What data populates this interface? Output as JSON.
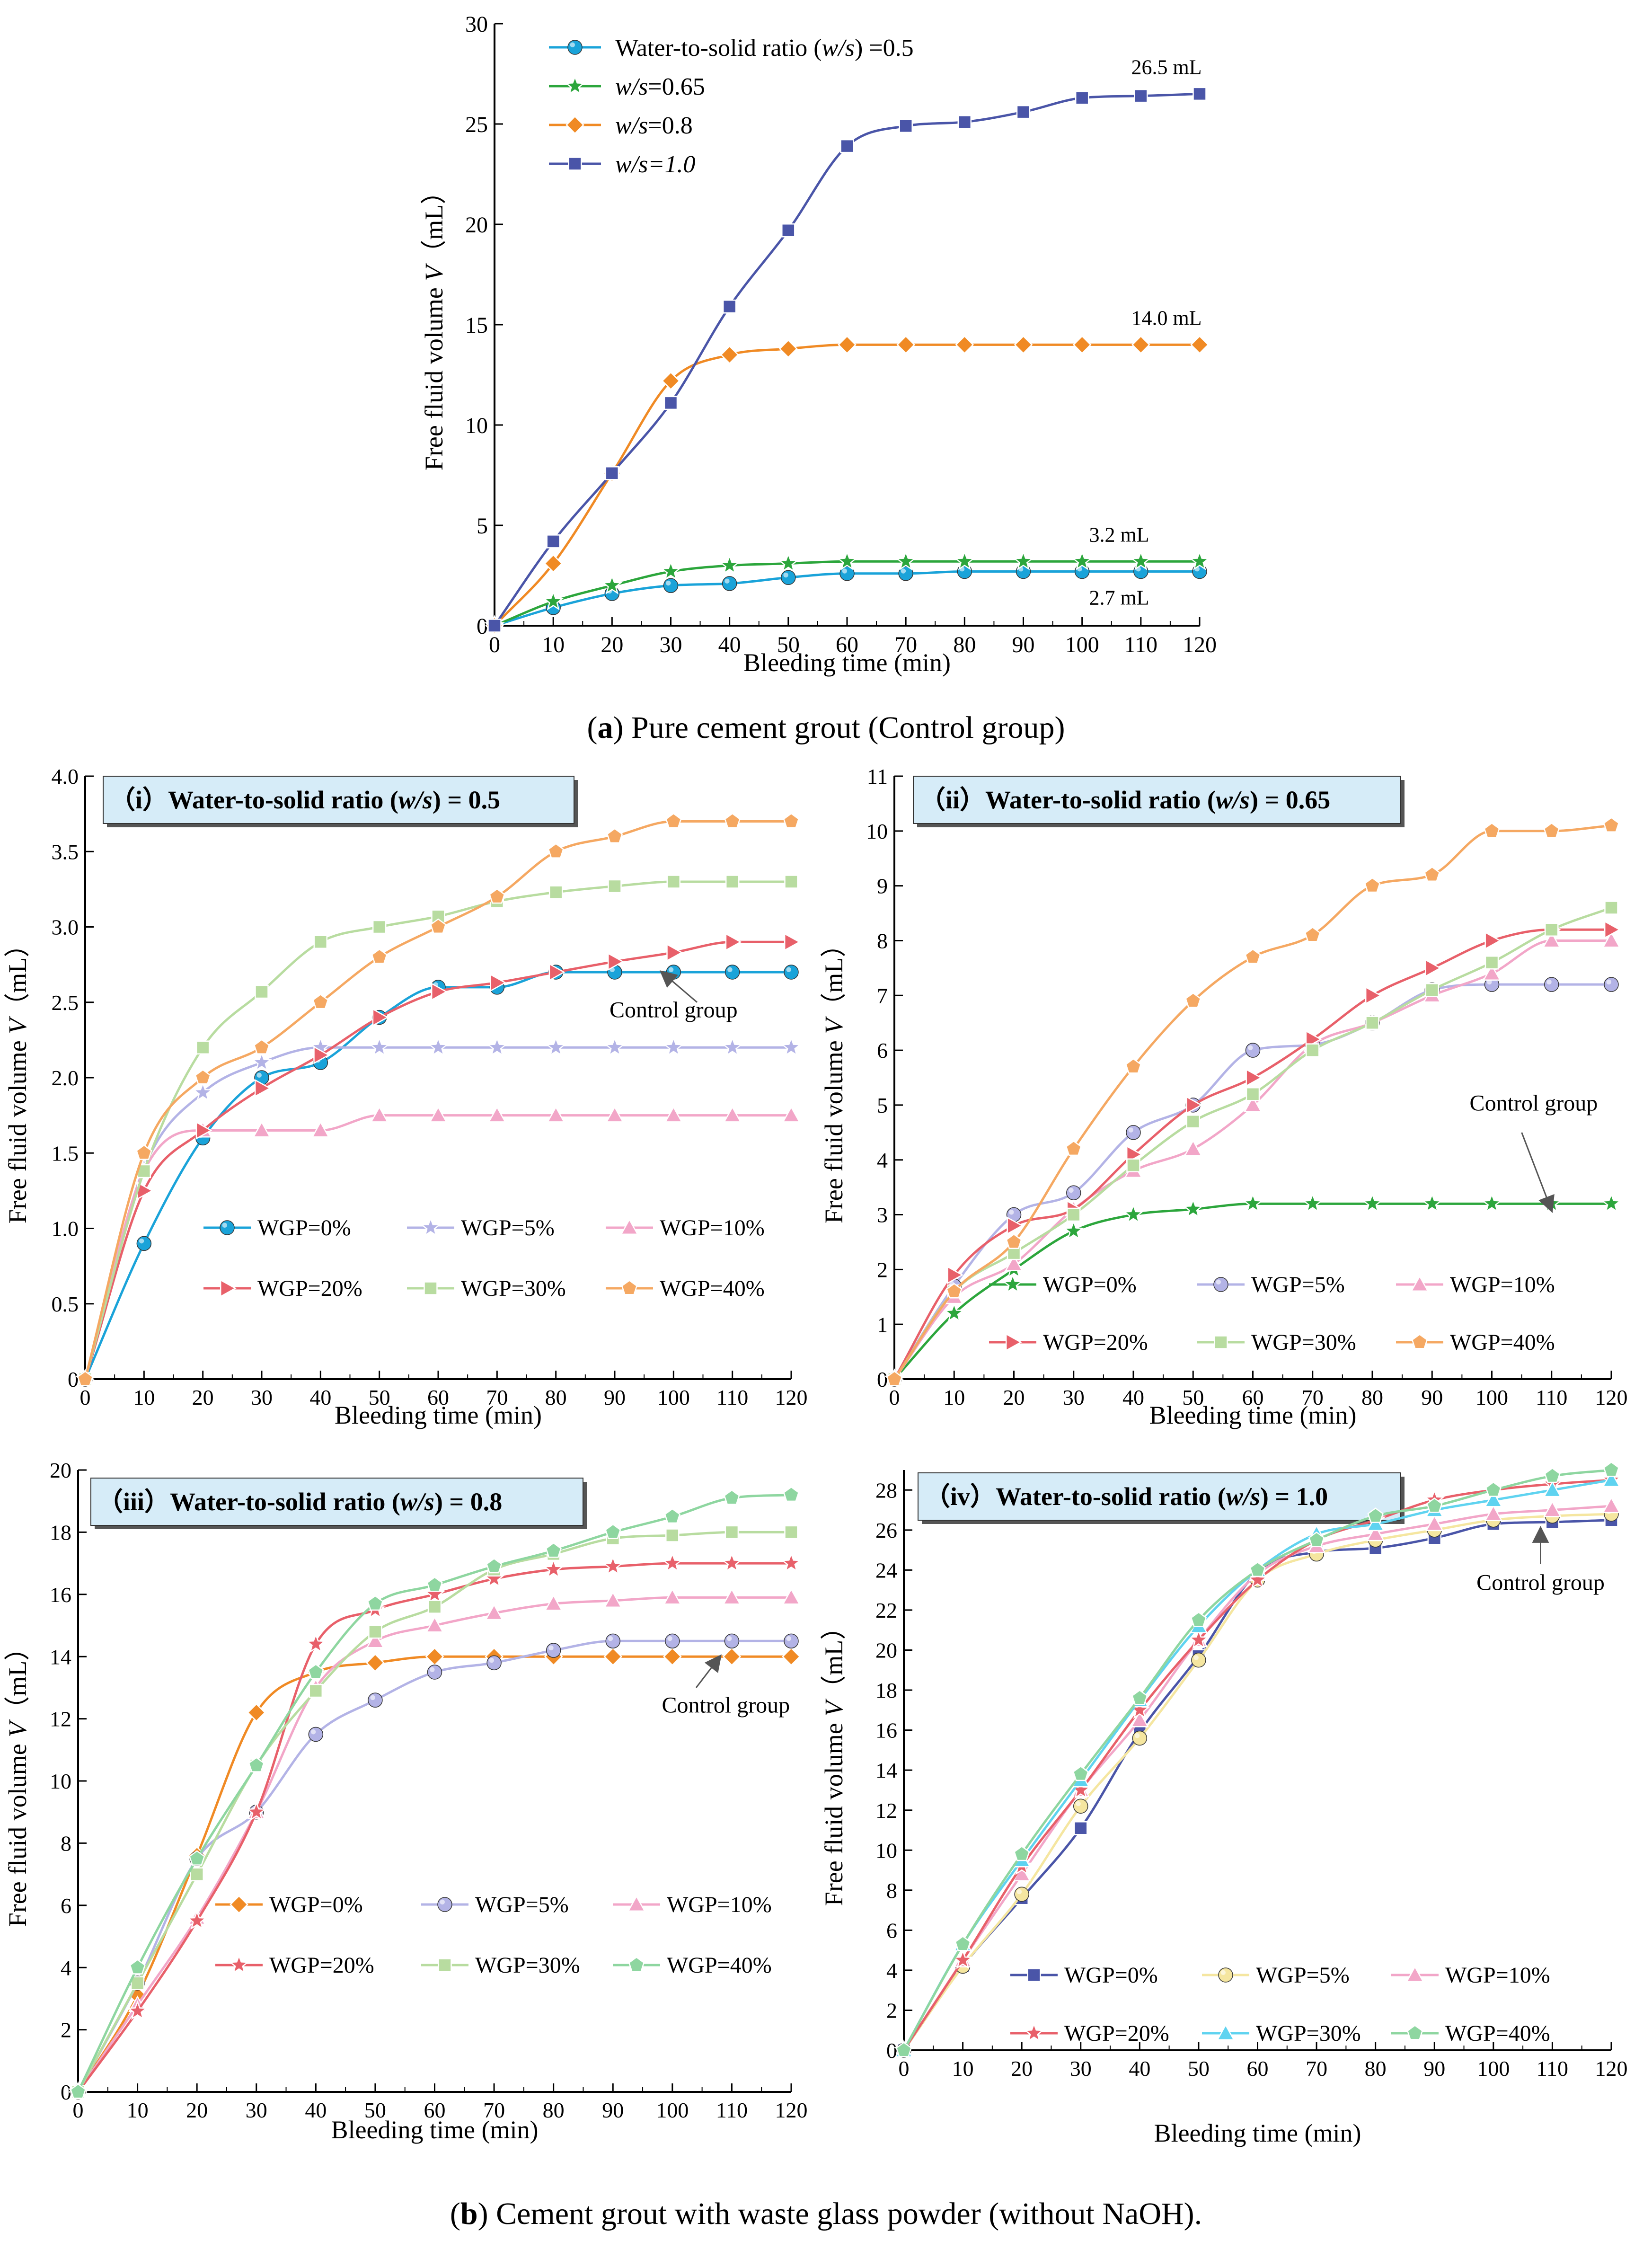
{
  "figure": {
    "caption_a_letter": "a",
    "caption_a_text": " Pure cement grout (Control group)",
    "caption_b_letter": "b",
    "caption_b_text": " Cement grout with waste glass powder (without NaOH)."
  },
  "chart_data": [
    {
      "id": "a",
      "type": "line",
      "title": "",
      "xlabel": "Bleeding time (min)",
      "ylabel": "Free fluid volume V（mL）",
      "xlim": [
        0,
        120
      ],
      "ylim": [
        0,
        30
      ],
      "xticks": [
        10,
        20,
        30,
        40,
        50,
        60,
        70,
        80,
        90,
        100,
        110,
        120
      ],
      "xticks_zero": "0",
      "yticks": [
        0,
        5,
        10,
        15,
        20,
        25,
        30
      ],
      "x": [
        0,
        10,
        20,
        30,
        40,
        50,
        60,
        70,
        80,
        90,
        100,
        110,
        120
      ],
      "legend_position": "top-left",
      "series": [
        {
          "name": "Water-to-solid ratio (w/s) =0.5",
          "color": "#1aa3d9",
          "marker": "circle",
          "values": [
            0,
            0.9,
            1.6,
            2.0,
            2.1,
            2.4,
            2.6,
            2.6,
            2.7,
            2.7,
            2.7,
            2.7,
            2.7
          ]
        },
        {
          "name": "w/s=0.65",
          "color": "#2ca63c",
          "marker": "star",
          "values": [
            0,
            1.2,
            2.0,
            2.7,
            3.0,
            3.1,
            3.2,
            3.2,
            3.2,
            3.2,
            3.2,
            3.2,
            3.2
          ]
        },
        {
          "name": "w/s=0.8",
          "color": "#f08a24",
          "marker": "diamond",
          "values": [
            0,
            3.1,
            7.6,
            12.2,
            13.5,
            13.8,
            14.0,
            14.0,
            14.0,
            14.0,
            14.0,
            14.0,
            14.0
          ]
        },
        {
          "name": "w/s=1.0",
          "color": "#4a55a8",
          "marker": "square",
          "values": [
            0,
            4.2,
            7.6,
            11.1,
            15.9,
            19.7,
            23.9,
            24.9,
            25.1,
            25.6,
            26.3,
            26.4,
            26.5
          ]
        }
      ],
      "annotations": [
        {
          "text": "26.5 mL",
          "x": 120,
          "y": 26.5
        },
        {
          "text": "14.0 mL",
          "x": 120,
          "y": 14.0
        },
        {
          "text": "3.2  mL",
          "x": 120,
          "y": 3.2
        },
        {
          "text": "2.7 mL",
          "x": 120,
          "y": 2.7
        }
      ]
    },
    {
      "id": "b1",
      "type": "line",
      "title": "（i）Water-to-solid ratio (w/s) = 0.5",
      "xlabel": "Bleeding time (min)",
      "ylabel": "Free fluid volume V（mL）",
      "xlim": [
        0,
        120
      ],
      "ylim": [
        0,
        4.0
      ],
      "xticks": [
        0,
        10,
        20,
        30,
        40,
        50,
        60,
        70,
        80,
        90,
        100,
        110,
        120
      ],
      "yticks": [
        0.5,
        1.0,
        1.5,
        2.0,
        2.5,
        3.0,
        3.5,
        4.0
      ],
      "yticks_text": [
        "0.5",
        "1.0",
        "1.5",
        "2.0",
        "2.5",
        "3.0",
        "3.5",
        "4.0"
      ],
      "x": [
        0,
        10,
        20,
        30,
        40,
        50,
        60,
        70,
        80,
        90,
        100,
        110,
        120
      ],
      "legend_position": "bottom",
      "series": [
        {
          "name": "WGP=0%",
          "color": "#1aa3d9",
          "marker": "circle",
          "values": [
            0,
            0.9,
            1.6,
            2.0,
            2.1,
            2.4,
            2.6,
            2.6,
            2.7,
            2.7,
            2.7,
            2.7,
            2.7
          ]
        },
        {
          "name": "WGP=5%",
          "color": "#b3b3e6",
          "marker": "star",
          "values": [
            0,
            1.4,
            1.9,
            2.1,
            2.2,
            2.2,
            2.2,
            2.2,
            2.2,
            2.2,
            2.2,
            2.2,
            2.2
          ]
        },
        {
          "name": "WGP=10%",
          "color": "#f2a6c8",
          "marker": "triangle",
          "values": [
            0,
            1.38,
            1.65,
            1.65,
            1.65,
            1.75,
            1.75,
            1.75,
            1.75,
            1.75,
            1.75,
            1.75,
            1.75
          ]
        },
        {
          "name": "WGP=20%",
          "color": "#e8606a",
          "marker": "triangle-right",
          "values": [
            0,
            1.25,
            1.65,
            1.93,
            2.15,
            2.4,
            2.57,
            2.63,
            2.7,
            2.77,
            2.83,
            2.9,
            2.9
          ]
        },
        {
          "name": "WGP=30%",
          "color": "#b8dca0",
          "marker": "square",
          "values": [
            0,
            1.38,
            2.2,
            2.57,
            2.9,
            3.0,
            3.07,
            3.17,
            3.23,
            3.27,
            3.3,
            3.3,
            3.3
          ]
        },
        {
          "name": "WGP=40%",
          "color": "#f5a862",
          "marker": "pentagon",
          "values": [
            0,
            1.5,
            2.0,
            2.2,
            2.5,
            2.8,
            3.0,
            3.2,
            3.5,
            3.6,
            3.7,
            3.7,
            3.7
          ]
        }
      ],
      "annotations": [
        {
          "text": "Control group",
          "x": 98,
          "y": 2.7
        }
      ]
    },
    {
      "id": "b2",
      "type": "line",
      "title": "（ii）Water-to-solid ratio (w/s) = 0.65",
      "xlabel": "Bleeding time (min)",
      "ylabel": "Free fluid volume V（mL）",
      "xlim": [
        0,
        120
      ],
      "ylim": [
        0,
        11
      ],
      "xticks": [
        0,
        10,
        20,
        30,
        40,
        50,
        60,
        70,
        80,
        90,
        100,
        110,
        120
      ],
      "yticks": [
        1,
        2,
        3,
        4,
        5,
        6,
        7,
        8,
        9,
        10,
        11
      ],
      "x": [
        0,
        10,
        20,
        30,
        40,
        50,
        60,
        70,
        80,
        90,
        100,
        110,
        120
      ],
      "legend_position": "bottom",
      "series": [
        {
          "name": "WGP=0%",
          "color": "#2ca63c",
          "marker": "star",
          "values": [
            0,
            1.2,
            2.0,
            2.7,
            3.0,
            3.1,
            3.2,
            3.2,
            3.2,
            3.2,
            3.2,
            3.2,
            3.2
          ]
        },
        {
          "name": "WGP=5%",
          "color": "#b3b3e6",
          "marker": "circle",
          "values": [
            0,
            1.7,
            3.0,
            3.4,
            4.5,
            5.0,
            6.0,
            6.1,
            6.5,
            7.1,
            7.2,
            7.2,
            7.2
          ]
        },
        {
          "name": "WGP=10%",
          "color": "#f2a6c8",
          "marker": "triangle",
          "values": [
            0,
            1.5,
            2.1,
            3.1,
            3.8,
            4.2,
            5.0,
            6.1,
            6.5,
            7.0,
            7.4,
            8.0,
            8.0
          ]
        },
        {
          "name": "WGP=20%",
          "color": "#e8606a",
          "marker": "triangle-right",
          "values": [
            0,
            1.9,
            2.8,
            3.1,
            4.1,
            5.0,
            5.5,
            6.2,
            7.0,
            7.5,
            8.0,
            8.2,
            8.2
          ]
        },
        {
          "name": "WGP=30%",
          "color": "#b8dca0",
          "marker": "square",
          "values": [
            0,
            1.6,
            2.3,
            3.0,
            3.9,
            4.7,
            5.2,
            6.0,
            6.5,
            7.1,
            7.6,
            8.2,
            8.6
          ]
        },
        {
          "name": "WGP=40%",
          "color": "#f5a862",
          "marker": "pentagon",
          "values": [
            0,
            1.6,
            2.5,
            4.2,
            5.7,
            6.9,
            7.7,
            8.1,
            9.0,
            9.2,
            10.0,
            10.0,
            10.1
          ]
        }
      ],
      "annotations": [
        {
          "text": "Control group",
          "x": 110,
          "y": 3.2
        }
      ]
    },
    {
      "id": "b3",
      "type": "line",
      "title": "（iii）Water-to-solid ratio (w/s)  = 0.8",
      "xlabel": "Bleeding time (min)",
      "ylabel": "Free fluid volume V（mL）",
      "xlim": [
        0,
        120
      ],
      "ylim": [
        0,
        20
      ],
      "xticks": [
        0,
        10,
        20,
        30,
        40,
        50,
        60,
        70,
        80,
        90,
        100,
        110,
        120
      ],
      "yticks": [
        2,
        4,
        6,
        8,
        10,
        12,
        14,
        16,
        18,
        20
      ],
      "x": [
        0,
        10,
        20,
        30,
        40,
        50,
        60,
        70,
        80,
        90,
        100,
        110,
        120
      ],
      "legend_position": "bottom",
      "series": [
        {
          "name": "WGP=0%",
          "color": "#f08a24",
          "marker": "diamond",
          "values": [
            0,
            3.1,
            7.6,
            12.2,
            13.5,
            13.8,
            14.0,
            14.0,
            14.0,
            14.0,
            14.0,
            14.0,
            14.0
          ]
        },
        {
          "name": "WGP=5%",
          "color": "#b3b3e6",
          "marker": "circle",
          "values": [
            0,
            3.5,
            7.5,
            9.0,
            11.5,
            12.6,
            13.5,
            13.8,
            14.2,
            14.5,
            14.5,
            14.5,
            14.5
          ]
        },
        {
          "name": "WGP=10%",
          "color": "#f2a6c8",
          "marker": "triangle",
          "values": [
            0,
            2.8,
            5.6,
            9.0,
            13.0,
            14.5,
            15.0,
            15.4,
            15.7,
            15.8,
            15.9,
            15.9,
            15.9
          ]
        },
        {
          "name": "WGP=20%",
          "color": "#e8606a",
          "marker": "star",
          "values": [
            0,
            2.6,
            5.5,
            9.0,
            14.4,
            15.5,
            16.0,
            16.5,
            16.8,
            16.9,
            17.0,
            17.0,
            17.0
          ]
        },
        {
          "name": "WGP=30%",
          "color": "#b8dca0",
          "marker": "square",
          "values": [
            0,
            3.5,
            7.0,
            10.5,
            12.9,
            14.8,
            15.6,
            16.8,
            17.3,
            17.8,
            17.9,
            18.0,
            18.0
          ]
        },
        {
          "name": "WGP=40%",
          "color": "#8ed6a0",
          "marker": "pentagon",
          "values": [
            0,
            4.0,
            7.5,
            10.5,
            13.5,
            15.7,
            16.3,
            16.9,
            17.4,
            18.0,
            18.5,
            19.1,
            19.2
          ]
        }
      ],
      "annotations": [
        {
          "text": "Control group",
          "x": 108,
          "y": 14.0
        }
      ]
    },
    {
      "id": "b4",
      "type": "line",
      "title": "（iv）Water-to-solid ratio (w/s)  = 1.0",
      "xlabel": "Bleeding time (min)",
      "ylabel": "Free fluid volume V（mL）",
      "xlim": [
        0,
        120
      ],
      "ylim": [
        0,
        29
      ],
      "xticks": [
        0,
        10,
        20,
        30,
        40,
        50,
        60,
        70,
        80,
        90,
        100,
        110,
        120
      ],
      "yticks": [
        2,
        4,
        6,
        8,
        10,
        12,
        14,
        16,
        18,
        20,
        22,
        24,
        26,
        28
      ],
      "x": [
        0,
        10,
        20,
        30,
        40,
        50,
        60,
        70,
        80,
        90,
        100,
        110,
        120
      ],
      "legend_position": "bottom",
      "series": [
        {
          "name": "WGP=0%",
          "color": "#4a55a8",
          "marker": "square",
          "values": [
            0,
            4.2,
            7.6,
            11.1,
            15.9,
            19.7,
            23.9,
            24.9,
            25.1,
            25.6,
            26.3,
            26.4,
            26.5
          ]
        },
        {
          "name": "WGP=5%",
          "color": "#f5e6a0",
          "marker": "circle",
          "values": [
            0,
            4.2,
            7.8,
            12.2,
            15.6,
            19.5,
            23.5,
            24.8,
            25.5,
            26.0,
            26.5,
            26.7,
            26.8
          ]
        },
        {
          "name": "WGP=10%",
          "color": "#f2a6c8",
          "marker": "triangle",
          "values": [
            0,
            4.5,
            8.8,
            13.0,
            16.5,
            20.5,
            23.8,
            25.2,
            25.8,
            26.3,
            26.8,
            27.0,
            27.2
          ]
        },
        {
          "name": "WGP=20%",
          "color": "#e8606a",
          "marker": "star",
          "values": [
            0,
            4.5,
            9.2,
            13.0,
            17.0,
            20.5,
            23.5,
            25.5,
            26.5,
            27.5,
            28.0,
            28.3,
            28.5
          ]
        },
        {
          "name": "WGP=30%",
          "color": "#5fd3f0",
          "marker": "triangle",
          "values": [
            0,
            5.3,
            9.5,
            13.5,
            17.5,
            21.2,
            24.0,
            25.8,
            26.3,
            27.0,
            27.5,
            28.0,
            28.5
          ]
        },
        {
          "name": "WGP=40%",
          "color": "#8ed6a0",
          "marker": "pentagon",
          "values": [
            0,
            5.3,
            9.8,
            13.8,
            17.6,
            21.5,
            24.0,
            25.5,
            26.7,
            27.2,
            28.0,
            28.7,
            29.0
          ]
        }
      ],
      "annotations": [
        {
          "text": "Control group",
          "x": 108,
          "y": 26.4
        }
      ]
    }
  ]
}
